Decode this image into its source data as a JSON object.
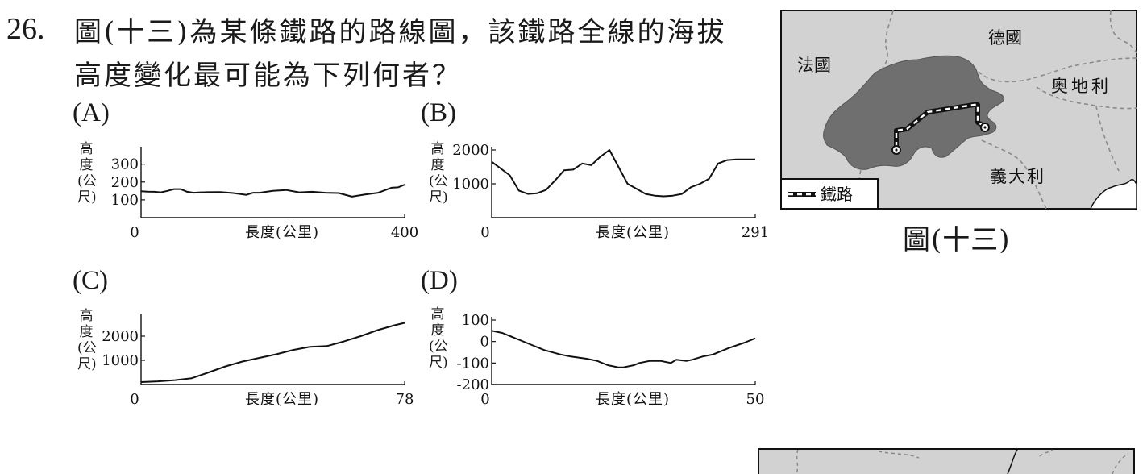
{
  "question": {
    "number": "26.",
    "line1": "圖(十三)為某條鐵路的路線圖，該鐵路全線的海拔",
    "line2": "高度變化最可能為下列何者？"
  },
  "axis_common": {
    "ylabel": [
      "高",
      "度",
      "(公",
      "尺)"
    ],
    "xlabel": "長度(公里)"
  },
  "chart_data": [
    {
      "option": "(A)",
      "type": "line",
      "x": [
        0,
        10,
        20,
        30,
        40,
        50,
        60,
        70,
        80,
        90,
        100,
        120,
        140,
        160,
        170,
        180,
        200,
        220,
        240,
        260,
        280,
        300,
        320,
        340,
        360,
        380,
        390,
        400
      ],
      "y": [
        148,
        146,
        145,
        142,
        150,
        160,
        160,
        145,
        140,
        142,
        143,
        144,
        138,
        128,
        140,
        140,
        150,
        155,
        142,
        145,
        140,
        138,
        118,
        130,
        140,
        168,
        170,
        185
      ],
      "xlim": [
        0,
        400
      ],
      "ylim": [
        0,
        380
      ],
      "yticks": [
        "300",
        "200",
        "100"
      ],
      "xticks": [
        "0",
        "400"
      ]
    },
    {
      "option": "(B)",
      "type": "line",
      "x": [
        0,
        20,
        30,
        40,
        50,
        60,
        70,
        80,
        90,
        100,
        110,
        120,
        130,
        140,
        150,
        160,
        170,
        180,
        190,
        200,
        210,
        220,
        230,
        240,
        250,
        260,
        270,
        280,
        291
      ],
      "y": [
        1650,
        1250,
        800,
        700,
        720,
        820,
        1100,
        1400,
        1420,
        1600,
        1550,
        1800,
        2000,
        1500,
        1000,
        850,
        700,
        650,
        630,
        650,
        700,
        900,
        1000,
        1150,
        1600,
        1700,
        1720,
        1720,
        1720
      ],
      "xlim": [
        0,
        291
      ],
      "ylim": [
        0,
        2000
      ],
      "yticks": [
        "2000",
        "1000"
      ],
      "xticks": [
        "0",
        "291"
      ]
    },
    {
      "option": "(C)",
      "type": "line",
      "x": [
        0,
        5,
        10,
        15,
        20,
        25,
        30,
        35,
        40,
        45,
        50,
        55,
        60,
        65,
        70,
        75,
        78
      ],
      "y": [
        100,
        130,
        180,
        260,
        500,
        750,
        950,
        1100,
        1250,
        1430,
        1560,
        1590,
        1780,
        2000,
        2250,
        2450,
        2550
      ],
      "xlim": [
        0,
        78
      ],
      "ylim": [
        0,
        2800
      ],
      "yticks": [
        "2000",
        "1000"
      ],
      "xticks": [
        "0",
        "78"
      ]
    },
    {
      "option": "(D)",
      "type": "line",
      "x": [
        0,
        2,
        5,
        8,
        10,
        13,
        15,
        18,
        20,
        22,
        24,
        25,
        27,
        28,
        30,
        32,
        34,
        35,
        37,
        38,
        40,
        42,
        44,
        45,
        48,
        50
      ],
      "y": [
        50,
        40,
        10,
        -20,
        -40,
        -60,
        -70,
        -80,
        -90,
        -110,
        -120,
        -120,
        -110,
        -100,
        -90,
        -90,
        -100,
        -85,
        -90,
        -85,
        -70,
        -60,
        -40,
        -30,
        -5,
        15
      ],
      "xlim": [
        0,
        50
      ],
      "ylim": [
        -200,
        100
      ],
      "yticks": [
        "100",
        "0",
        "-100",
        "-200"
      ],
      "xticks": [
        "0",
        "50"
      ]
    }
  ],
  "map": {
    "countries": [
      "德國",
      "法國",
      "奧地利",
      "義大利"
    ],
    "legend": "鐵路",
    "caption": "圖(十三)"
  }
}
